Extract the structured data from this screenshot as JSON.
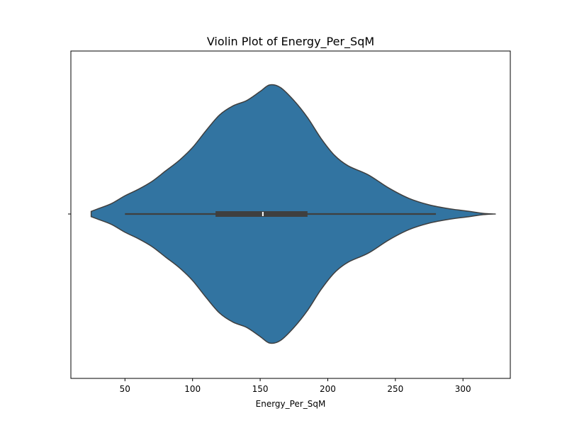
{
  "chart_data": {
    "type": "violin",
    "title": "Violin Plot of Energy_Per_SqM",
    "xlabel": "Energy_Per_SqM",
    "ylabel": "",
    "xlim": [
      10,
      335
    ],
    "x_ticks": [
      50,
      100,
      150,
      200,
      250,
      300
    ],
    "y_ticks": [
      ""
    ],
    "grid": false,
    "colors": {
      "violin_fill": "#3274a1",
      "violin_edge": "#3f3f3f",
      "box": "#3f3f3f",
      "median": "#ffffff"
    },
    "density_profile": [
      {
        "x": 25,
        "w": 0.02
      },
      {
        "x": 30,
        "w": 0.04
      },
      {
        "x": 40,
        "w": 0.08
      },
      {
        "x": 50,
        "w": 0.14
      },
      {
        "x": 60,
        "w": 0.19
      },
      {
        "x": 70,
        "w": 0.25
      },
      {
        "x": 80,
        "w": 0.33
      },
      {
        "x": 90,
        "w": 0.41
      },
      {
        "x": 100,
        "w": 0.51
      },
      {
        "x": 110,
        "w": 0.64
      },
      {
        "x": 120,
        "w": 0.76
      },
      {
        "x": 130,
        "w": 0.83
      },
      {
        "x": 140,
        "w": 0.87
      },
      {
        "x": 150,
        "w": 0.94
      },
      {
        "x": 157,
        "w": 0.99
      },
      {
        "x": 165,
        "w": 0.97
      },
      {
        "x": 175,
        "w": 0.87
      },
      {
        "x": 185,
        "w": 0.74
      },
      {
        "x": 195,
        "w": 0.58
      },
      {
        "x": 205,
        "w": 0.45
      },
      {
        "x": 215,
        "w": 0.37
      },
      {
        "x": 230,
        "w": 0.3
      },
      {
        "x": 245,
        "w": 0.2
      },
      {
        "x": 260,
        "w": 0.12
      },
      {
        "x": 275,
        "w": 0.07
      },
      {
        "x": 290,
        "w": 0.04
      },
      {
        "x": 305,
        "w": 0.02
      },
      {
        "x": 315,
        "w": 0.005
      },
      {
        "x": 323,
        "w": 0.0
      }
    ],
    "box": {
      "whisker_low": 50,
      "q1": 117,
      "median": 152,
      "q3": 185,
      "whisker_high": 280
    }
  }
}
